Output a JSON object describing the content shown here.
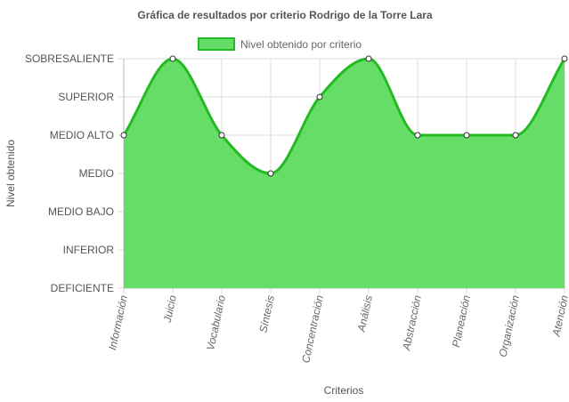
{
  "chart_data": {
    "type": "area",
    "title": "Gráfica de resultados por criterio Rodrigo de la Torre Lara",
    "xlabel": "Criterios",
    "ylabel": "Nivel obtenido",
    "categories": [
      "Información",
      "Juicio",
      "Vocabulario",
      "Síntesis",
      "Concentración",
      "Análisis",
      "Abstracción",
      "Planeación",
      "Organización",
      "Atención"
    ],
    "y_levels": [
      "DEFICIENTE",
      "INFERIOR",
      "MEDIO BAJO",
      "MEDIO",
      "MEDIO ALTO",
      "SUPERIOR",
      "SOBRESALIENTE"
    ],
    "series": [
      {
        "name": "Nivel obtenido por criterio",
        "values": [
          "MEDIO ALTO",
          "SOBRESALIENTE",
          "MEDIO ALTO",
          "MEDIO",
          "SUPERIOR",
          "SOBRESALIENTE",
          "MEDIO ALTO",
          "MEDIO ALTO",
          "MEDIO ALTO",
          "SOBRESALIENTE"
        ]
      }
    ],
    "legend_position": "top",
    "grid": true,
    "colors": {
      "fill": "#66dd66",
      "line": "#22bb22",
      "point_fill": "#ffffff",
      "point_stroke": "#333333",
      "grid": "#dddddd"
    }
  }
}
